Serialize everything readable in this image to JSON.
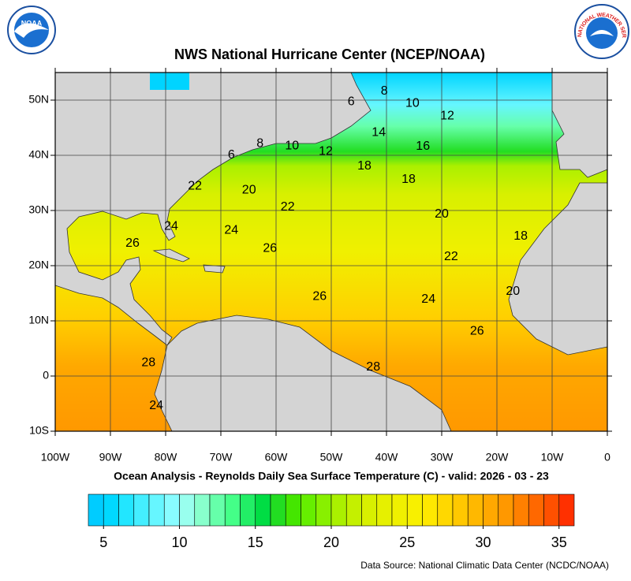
{
  "header": {
    "title": "NWS National Hurricane Center (NCEP/NOAA)"
  },
  "logos": {
    "noaa": "NOAA",
    "nws": "NATIONAL WEATHER SERVICE"
  },
  "map": {
    "lon_range": [
      -100,
      0
    ],
    "lat_range": [
      -10,
      55
    ],
    "xticks": [
      {
        "value": -100,
        "label": "100W"
      },
      {
        "value": -90,
        "label": "90W"
      },
      {
        "value": -80,
        "label": "80W"
      },
      {
        "value": -70,
        "label": "70W"
      },
      {
        "value": -60,
        "label": "60W"
      },
      {
        "value": -50,
        "label": "50W"
      },
      {
        "value": -40,
        "label": "40W"
      },
      {
        "value": -30,
        "label": "30W"
      },
      {
        "value": -20,
        "label": "20W"
      },
      {
        "value": -10,
        "label": "10W"
      },
      0
    ],
    "yticks": [
      {
        "value": 50,
        "label": "50N"
      },
      {
        "value": 40,
        "label": "40N"
      },
      {
        "value": 30,
        "label": "30N"
      },
      {
        "value": 20,
        "label": "20N"
      },
      {
        "value": 10,
        "label": "10N"
      },
      0,
      {
        "value": -10,
        "label": "10S"
      }
    ],
    "contour_labels": [
      {
        "value": 6,
        "lon": -46.4,
        "lat": 49.7
      },
      {
        "value": 8,
        "lon": -40.4,
        "lat": 51.6
      },
      {
        "value": 10,
        "lon": -35.3,
        "lat": 49.4
      },
      {
        "value": 12,
        "lon": -29,
        "lat": 47.1
      },
      {
        "value": 14,
        "lon": -41.4,
        "lat": 44.1
      },
      {
        "value": 16,
        "lon": -33.4,
        "lat": 41.6
      },
      {
        "value": 18,
        "lon": -44,
        "lat": 38
      },
      {
        "value": 18,
        "lon": -36,
        "lat": 35.6
      },
      {
        "value": 20,
        "lon": -30,
        "lat": 29.3
      },
      {
        "value": 22,
        "lon": -28.3,
        "lat": 21.6
      },
      {
        "value": 24,
        "lon": -32.4,
        "lat": 13.9
      },
      {
        "value": 26,
        "lon": -23.6,
        "lat": 8.1
      },
      {
        "value": 28,
        "lon": -42.4,
        "lat": 1.6
      },
      {
        "value": 26,
        "lon": -52.1,
        "lat": 14.4
      },
      {
        "value": 26,
        "lon": -61.1,
        "lat": 23.1
      },
      {
        "value": 24,
        "lon": -68.1,
        "lat": 26.4
      },
      {
        "value": 22,
        "lon": -57.9,
        "lat": 30.6
      },
      {
        "value": 20,
        "lon": -64.9,
        "lat": 33.7
      },
      {
        "value": 22,
        "lon": -74.7,
        "lat": 34.4
      },
      {
        "value": 6,
        "lon": -68.1,
        "lat": 40
      },
      {
        "value": 8,
        "lon": -62.9,
        "lat": 42.1
      },
      {
        "value": 10,
        "lon": -57.1,
        "lat": 41.7
      },
      {
        "value": 12,
        "lon": -51,
        "lat": 40.7
      },
      {
        "value": 24,
        "lon": -79,
        "lat": 27.1
      },
      {
        "value": 26,
        "lon": -86,
        "lat": 24
      },
      {
        "value": 28,
        "lon": -83.1,
        "lat": 2.4
      },
      {
        "value": 18,
        "lon": -15.7,
        "lat": 25.3
      },
      {
        "value": 20,
        "lon": -17.1,
        "lat": 15.3
      },
      {
        "value": 24,
        "lon": -81.7,
        "lat": -5.4
      }
    ]
  },
  "caption": "Ocean Analysis - Reynolds Daily Sea Surface Temperature (C) - valid: 2026 - 03 - 23",
  "colorbar": {
    "range": [
      4,
      36
    ],
    "ticks": [
      5,
      10,
      15,
      20,
      25,
      30,
      35
    ],
    "colors": [
      "#00ccff",
      "#00d8ff",
      "#22e6ff",
      "#44eeff",
      "#66f6ff",
      "#88fcff",
      "#99ffee",
      "#88ffcc",
      "#66ffaa",
      "#44ff88",
      "#22ee66",
      "#00dd44",
      "#22dd22",
      "#44e600",
      "#66ee00",
      "#88f000",
      "#aaf000",
      "#c4f000",
      "#d8f000",
      "#e6f000",
      "#f0f000",
      "#f8f000",
      "#ffe800",
      "#ffd800",
      "#ffc800",
      "#ffb800",
      "#ffa800",
      "#ff9800",
      "#ff8000",
      "#ff6800",
      "#ff5000",
      "#ff3000"
    ]
  },
  "source": "Data Source: National Climatic Data Center (NCDC/NOAA)"
}
